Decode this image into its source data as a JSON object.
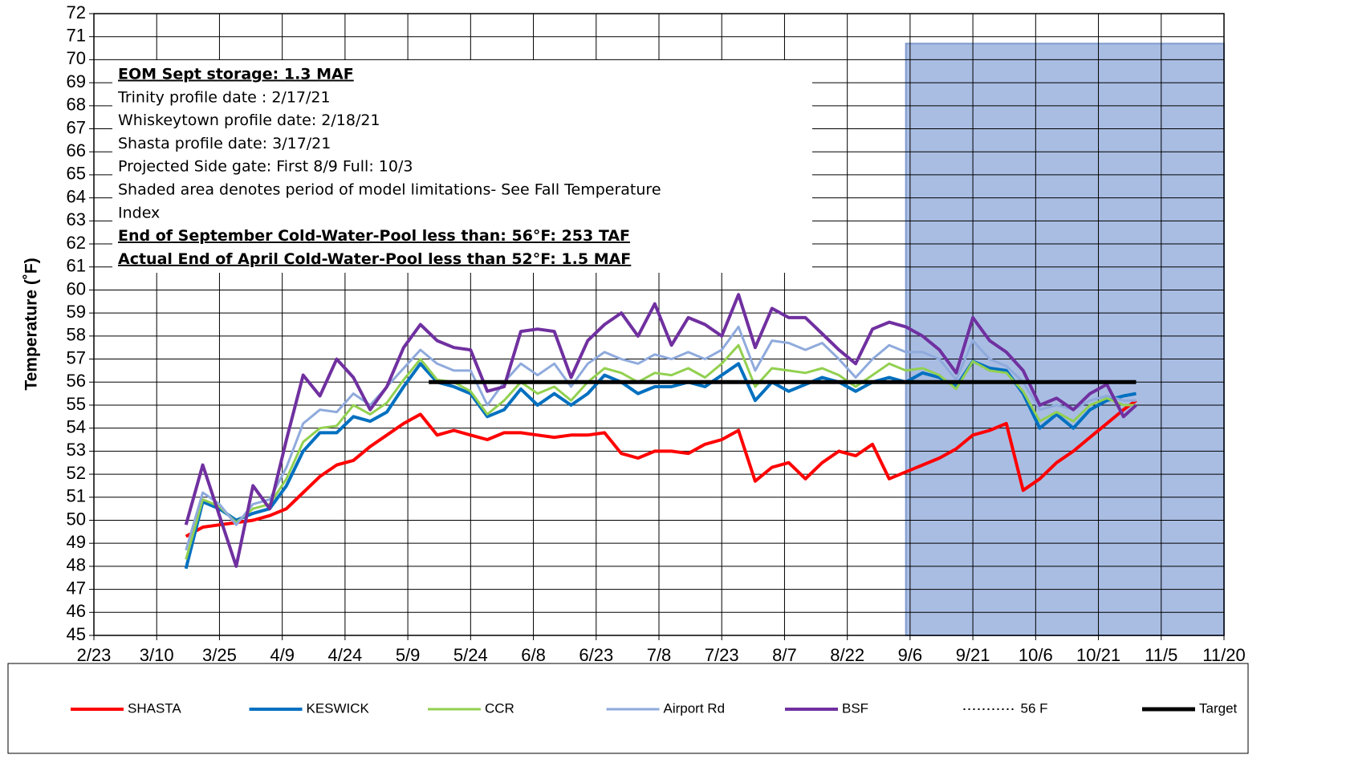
{
  "chart_data": {
    "type": "line",
    "y_label": "Temperature (˚F)",
    "xlim": [
      "2/23",
      "11/20"
    ],
    "xticks": [
      "2/23",
      "3/10",
      "3/25",
      "4/9",
      "4/24",
      "5/9",
      "5/24",
      "6/8",
      "6/23",
      "7/8",
      "7/23",
      "8/7",
      "8/22",
      "9/6",
      "9/21",
      "10/6",
      "10/21",
      "11/5",
      "11/20"
    ],
    "ylim": [
      45,
      72
    ],
    "yticks": [
      45,
      46,
      47,
      48,
      49,
      50,
      51,
      52,
      53,
      54,
      55,
      56,
      57,
      58,
      59,
      60,
      61,
      62,
      63,
      64,
      65,
      66,
      67,
      68,
      69,
      70,
      71,
      72
    ],
    "grid": true,
    "legend_position": "bottom",
    "shaded_region": {
      "x": [
        "9/5",
        "11/20"
      ],
      "y": [
        45,
        70.7
      ],
      "color": "#a9bde3"
    },
    "annotation_lines": [
      {
        "text": "EOM Sept storage: 1.3 MAF",
        "bold": true
      },
      {
        "text": "Trinity profile date : 2/17/21",
        "bold": false
      },
      {
        "text": "Whiskeytown profile date: 2/18/21",
        "bold": false
      },
      {
        "text": "Shasta profile date: 3/17/21",
        "bold": false
      },
      {
        "text": "Projected Side gate: First  8/9  Full:  10/3",
        "bold": false
      },
      {
        "text": "Shaded area denotes period of model limitations- See Fall Temperature",
        "bold": false
      },
      {
        "text": "Index",
        "bold": false
      },
      {
        "text": "End of September Cold-Water-Pool less than: 56°F: 253 TAF",
        "bold": true
      },
      {
        "text": "Actual End of April Cold-Water-Pool less than 52°F: 1.5 MAF",
        "bold": true
      }
    ],
    "x": [
      "3/17",
      "3/21",
      "3/25",
      "3/29",
      "4/2",
      "4/6",
      "4/10",
      "4/14",
      "4/18",
      "4/22",
      "4/26",
      "4/30",
      "5/4",
      "5/8",
      "5/12",
      "5/16",
      "5/20",
      "5/24",
      "5/28",
      "6/1",
      "6/5",
      "6/9",
      "6/13",
      "6/17",
      "6/21",
      "6/25",
      "6/29",
      "7/3",
      "7/7",
      "7/11",
      "7/15",
      "7/19",
      "7/23",
      "7/27",
      "7/31",
      "8/4",
      "8/8",
      "8/12",
      "8/16",
      "8/20",
      "8/24",
      "8/28",
      "9/1",
      "9/5",
      "9/9",
      "9/13",
      "9/17",
      "9/21",
      "9/25",
      "9/29",
      "10/3",
      "10/7",
      "10/11",
      "10/15",
      "10/19",
      "10/23",
      "10/27",
      "10/30"
    ],
    "series": [
      {
        "name": "SHASTA",
        "color": "#ff0000",
        "width": 4,
        "dash": "solid",
        "values": [
          49.3,
          49.7,
          49.8,
          49.9,
          50.0,
          50.2,
          50.5,
          51.2,
          51.9,
          52.4,
          52.6,
          53.2,
          53.7,
          54.2,
          54.6,
          53.7,
          53.9,
          53.7,
          53.5,
          53.8,
          53.8,
          53.7,
          53.6,
          53.7,
          53.7,
          53.8,
          52.9,
          52.7,
          53.0,
          53.0,
          52.9,
          53.3,
          53.5,
          53.9,
          51.7,
          52.3,
          52.5,
          51.8,
          52.5,
          53.0,
          52.8,
          53.3,
          51.8,
          52.1,
          52.4,
          52.7,
          53.1,
          53.7,
          53.9,
          54.2,
          51.3,
          51.8,
          52.5,
          53.0,
          53.6,
          54.2,
          54.8,
          55.2
        ]
      },
      {
        "name": "KESWICK",
        "color": "#0070c0",
        "width": 4,
        "dash": "solid",
        "values": [
          47.9,
          50.8,
          50.5,
          50.0,
          50.3,
          50.5,
          51.5,
          53.0,
          53.8,
          53.8,
          54.5,
          54.3,
          54.7,
          55.8,
          56.8,
          56.0,
          55.8,
          55.5,
          54.5,
          54.8,
          55.7,
          55.0,
          55.5,
          55.0,
          55.5,
          56.3,
          56.0,
          55.5,
          55.8,
          55.8,
          56.0,
          55.8,
          56.3,
          56.8,
          55.2,
          56.0,
          55.6,
          55.9,
          56.2,
          56.0,
          55.6,
          56.0,
          56.2,
          56.0,
          56.4,
          56.2,
          55.8,
          56.9,
          56.6,
          56.5,
          55.5,
          54.0,
          54.6,
          54.0,
          54.8,
          55.2,
          55.4,
          55.5
        ]
      },
      {
        "name": "CCR",
        "color": "#92d050",
        "width": 3,
        "dash": "solid",
        "values": [
          48.3,
          50.9,
          50.6,
          49.9,
          50.5,
          50.7,
          51.8,
          53.4,
          54.0,
          54.1,
          55.0,
          54.6,
          55.1,
          56.1,
          57.0,
          56.1,
          56.0,
          55.6,
          54.6,
          55.2,
          56.0,
          55.5,
          55.8,
          55.2,
          56.0,
          56.6,
          56.4,
          56.0,
          56.4,
          56.3,
          56.6,
          56.2,
          56.8,
          57.6,
          55.8,
          56.6,
          56.5,
          56.4,
          56.6,
          56.3,
          55.8,
          56.3,
          56.8,
          56.5,
          56.6,
          56.3,
          55.7,
          56.9,
          56.5,
          56.4,
          55.6,
          54.3,
          54.7,
          54.3,
          55.0,
          55.3,
          55.0,
          55.0
        ]
      },
      {
        "name": "Airport Rd",
        "color": "#8faadc",
        "width": 3,
        "dash": "solid",
        "values": [
          48.7,
          51.2,
          50.7,
          49.8,
          50.7,
          50.9,
          52.3,
          54.2,
          54.8,
          54.7,
          55.5,
          55.0,
          55.8,
          56.6,
          57.4,
          56.8,
          56.5,
          56.5,
          55.0,
          56.0,
          56.8,
          56.3,
          56.8,
          55.8,
          56.8,
          57.3,
          57.0,
          56.8,
          57.2,
          57.0,
          57.3,
          57.0,
          57.4,
          58.4,
          56.5,
          57.8,
          57.7,
          57.4,
          57.7,
          57.0,
          56.2,
          57.0,
          57.6,
          57.3,
          57.3,
          57.0,
          56.1,
          57.8,
          57.0,
          56.7,
          56.0,
          54.8,
          55.0,
          54.8,
          55.2,
          55.4,
          55.2,
          55.2
        ]
      },
      {
        "name": "BSF",
        "color": "#7030a0",
        "width": 4,
        "dash": "solid",
        "values": [
          49.8,
          52.4,
          50.2,
          48.0,
          51.5,
          50.5,
          53.5,
          56.3,
          55.4,
          57.0,
          56.2,
          54.8,
          55.8,
          57.5,
          58.5,
          57.8,
          57.5,
          57.4,
          55.6,
          55.8,
          58.2,
          58.3,
          58.2,
          56.2,
          57.8,
          58.5,
          59.0,
          58.0,
          59.4,
          57.6,
          58.8,
          58.5,
          58.0,
          59.8,
          57.5,
          59.2,
          58.8,
          58.8,
          58.1,
          57.4,
          56.8,
          58.3,
          58.6,
          58.4,
          58.0,
          57.4,
          56.4,
          58.8,
          57.8,
          57.3,
          56.5,
          55.0,
          55.3,
          54.8,
          55.5,
          55.9,
          54.5,
          55.0
        ]
      },
      {
        "name": "56 F",
        "color": "#000000",
        "width": 2,
        "dash": "dotted",
        "x": [
          "5/14",
          "10/30"
        ],
        "values": [
          56,
          56
        ]
      },
      {
        "name": "Target",
        "color": "#000000",
        "width": 5,
        "dash": "solid",
        "x": [
          "5/14",
          "10/30"
        ],
        "values": [
          56,
          56
        ]
      }
    ]
  }
}
